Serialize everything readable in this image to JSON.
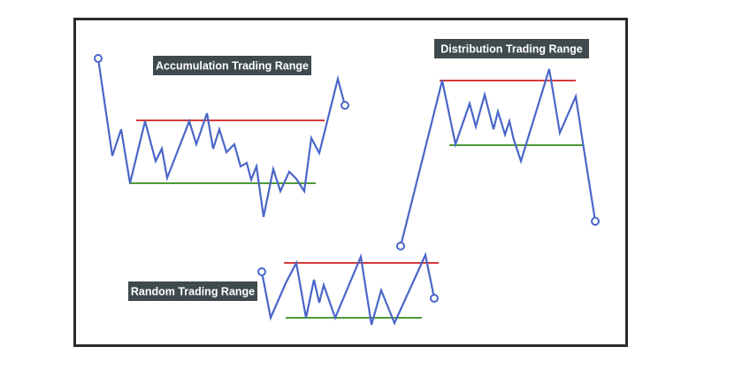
{
  "panels": [
    {
      "id": "accumulation",
      "label": "Accumulation Trading Range",
      "resistance_color": "#d53b3b",
      "support_color": "#4e9a38",
      "line_color": "#4a66c8"
    },
    {
      "id": "distribution",
      "label": "Distribution Trading Range",
      "resistance_color": "#d53b3b",
      "support_color": "#4e9a38",
      "line_color": "#4a66c8"
    },
    {
      "id": "random",
      "label": "Random Trading Range",
      "resistance_color": "#d53b3b",
      "support_color": "#4e9a38",
      "line_color": "#4a66c8"
    }
  ]
}
